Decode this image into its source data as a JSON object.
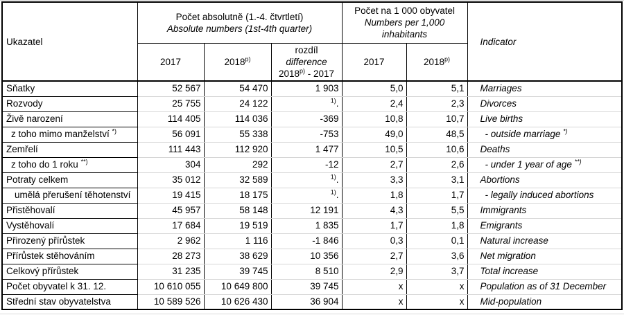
{
  "page": {
    "background": "#ffffff",
    "text_color": "#000000",
    "border_color": "#000000",
    "gridline_color": "#d9d9d9"
  },
  "table": {
    "header": {
      "ukazatel": "Ukazatel",
      "indicator": "Indicator",
      "absolute_group_cs": "Počet absolutně (1.-4. čtvrtletí)",
      "absolute_group_en": "Absolute numbers (1st-4th quarter)",
      "per1000_group_cs": "Počet na 1 000 obyvatel",
      "per1000_group_en_line1": "Numbers per 1,000",
      "per1000_group_en_line2": "inhabitants",
      "abs_year_2017": "2017",
      "abs_year_2018": "2018",
      "abs_year_2018_sup": "p)",
      "diff_line1_cs": "rozdíl",
      "diff_line2_en": "difference",
      "diff_line3_year": "2018",
      "diff_line3_sup": "p)",
      "diff_line3_rest": " - 2017",
      "rate_year_2017": "2017",
      "rate_year_2018": "2018",
      "rate_year_2018_sup": "p)"
    },
    "rows": [
      {
        "cs": "Sňatky",
        "cs_sup": "",
        "cs_indent": 0,
        "abs2017": "52 567",
        "abs2018": "54 470",
        "diff_sup": "",
        "diff": "1 903",
        "per2017": "5,0",
        "per2018": "5,1",
        "en": "Marriages",
        "en_sup": "",
        "en_indent": 0
      },
      {
        "cs": "Rozvody",
        "cs_sup": "",
        "cs_indent": 0,
        "abs2017": "25 755",
        "abs2018": "24 122",
        "diff_sup": "1)",
        "diff": ".",
        "per2017": "2,4",
        "per2018": "2,3",
        "en": "Divorces",
        "en_sup": "",
        "en_indent": 0
      },
      {
        "cs": "Živě narození",
        "cs_sup": "",
        "cs_indent": 0,
        "abs2017": "114 405",
        "abs2018": "114 036",
        "diff_sup": "",
        "diff": "-369",
        "per2017": "10,8",
        "per2018": "10,7",
        "en": "Live births",
        "en_sup": "",
        "en_indent": 0
      },
      {
        "cs": "z toho mimo manželství ",
        "cs_sup": "*)",
        "cs_indent": 1,
        "abs2017": "56 091",
        "abs2018": "55 338",
        "diff_sup": "",
        "diff": "-753",
        "per2017": "49,0",
        "per2018": "48,5",
        "en": "- outside marriage ",
        "en_sup": "*)",
        "en_indent": 1
      },
      {
        "cs": "Zemřelí",
        "cs_sup": "",
        "cs_indent": 0,
        "abs2017": "111 443",
        "abs2018": "112 920",
        "diff_sup": "",
        "diff": "1 477",
        "per2017": "10,5",
        "per2018": "10,6",
        "en": "Deaths",
        "en_sup": "",
        "en_indent": 0
      },
      {
        "cs": "z toho do 1 roku ",
        "cs_sup": "**)",
        "cs_indent": 1,
        "abs2017": "304",
        "abs2018": "292",
        "diff_sup": "",
        "diff": "-12",
        "per2017": "2,7",
        "per2018": "2,6",
        "en": "- under 1 year of age ",
        "en_sup": "**)",
        "en_indent": 1
      },
      {
        "cs": "Potraty celkem",
        "cs_sup": "",
        "cs_indent": 0,
        "abs2017": "35 012",
        "abs2018": "32 589",
        "diff_sup": "1)",
        "diff": ".",
        "per2017": "3,3",
        "per2018": "3,1",
        "en": "Abortions",
        "en_sup": "",
        "en_indent": 0
      },
      {
        "cs": "umělá přerušení těhotenství",
        "cs_sup": "",
        "cs_indent": 2,
        "abs2017": "19 415",
        "abs2018": "18 175",
        "diff_sup": "1)",
        "diff": ".",
        "per2017": "1,8",
        "per2018": "1,7",
        "en": "- legally induced abortions",
        "en_sup": "",
        "en_indent": 1
      },
      {
        "cs": "Přistěhovalí",
        "cs_sup": "",
        "cs_indent": 0,
        "abs2017": "45 957",
        "abs2018": "58 148",
        "diff_sup": "",
        "diff": "12 191",
        "per2017": "4,3",
        "per2018": "5,5",
        "en": "Immigrants",
        "en_sup": "",
        "en_indent": 0
      },
      {
        "cs": "Vystěhovalí",
        "cs_sup": "",
        "cs_indent": 0,
        "abs2017": "17 684",
        "abs2018": "19 519",
        "diff_sup": "",
        "diff": "1 835",
        "per2017": "1,7",
        "per2018": "1,8",
        "en": "Emigrants",
        "en_sup": "",
        "en_indent": 0
      },
      {
        "cs": "Přirozený přírůstek",
        "cs_sup": "",
        "cs_indent": 0,
        "abs2017": "2 962",
        "abs2018": "1 116",
        "diff_sup": "",
        "diff": "-1 846",
        "per2017": "0,3",
        "per2018": "0,1",
        "en": "Natural increase",
        "en_sup": "",
        "en_indent": 0
      },
      {
        "cs": "Přírůstek stěhováním",
        "cs_sup": "",
        "cs_indent": 0,
        "abs2017": "28 273",
        "abs2018": "38 629",
        "diff_sup": "",
        "diff": "10 356",
        "per2017": "2,7",
        "per2018": "3,6",
        "en": "Net migration",
        "en_sup": "",
        "en_indent": 0
      },
      {
        "cs": "Celkový přírůstek",
        "cs_sup": "",
        "cs_indent": 0,
        "abs2017": "31 235",
        "abs2018": "39 745",
        "diff_sup": "",
        "diff": "8 510",
        "per2017": "2,9",
        "per2018": "3,7",
        "en": "Total increase",
        "en_sup": "",
        "en_indent": 0
      },
      {
        "cs": "Počet obyvatel k 31. 12.",
        "cs_sup": "",
        "cs_indent": 0,
        "abs2017": "10 610 055",
        "abs2018": "10 649 800",
        "diff_sup": "",
        "diff": "39 745",
        "per2017": "x",
        "per2018": "x",
        "en": "Population as of 31 December",
        "en_sup": "",
        "en_indent": 0
      },
      {
        "cs": "Střední stav obyvatelstva",
        "cs_sup": "",
        "cs_indent": 0,
        "abs2017": "10 589 526",
        "abs2018": "10 626 430",
        "diff_sup": "",
        "diff": "36 904",
        "per2017": "x",
        "per2018": "x",
        "en": "Mid-population",
        "en_sup": "",
        "en_indent": 0
      }
    ]
  }
}
